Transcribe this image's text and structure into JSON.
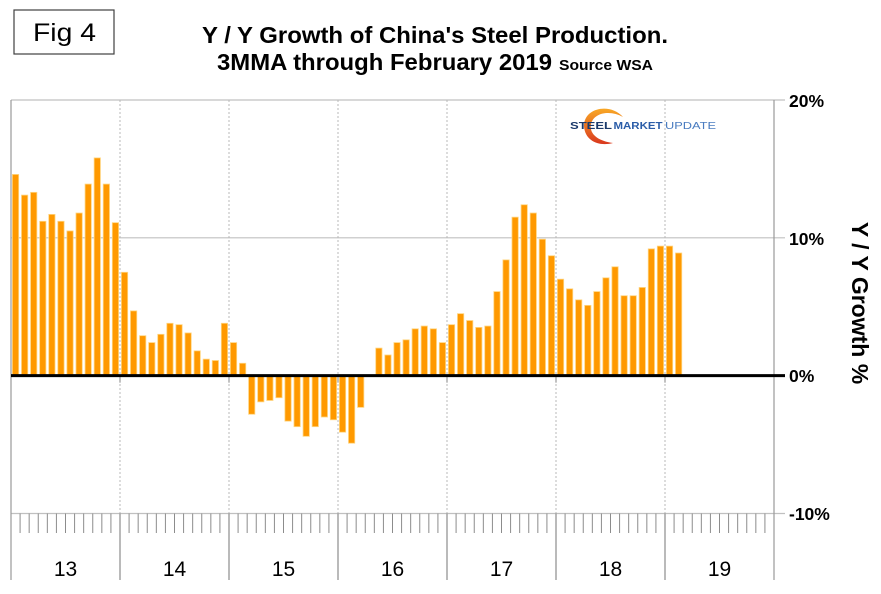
{
  "figure_label": "Fig 4",
  "title": {
    "line1": "Y / Y Growth of China's Steel Production.",
    "line2_main": "3MMA through February 2019",
    "line2_source": "Source WSA"
  },
  "logo": {
    "word1": "STEEL",
    "word2": "MARKET",
    "word3": "UPDATE",
    "colors": {
      "word1": "#1B3A6B",
      "word2": "#2B5DA8",
      "word3": "#4A7CC0",
      "swoosh_top": "#F9A825",
      "swoosh_bottom": "#D9381E"
    }
  },
  "chart_data": {
    "type": "bar",
    "title": "Y / Y Growth of China's Steel Production. 3MMA through February 2019",
    "subtitle": "Source WSA",
    "xlabel": "",
    "ylabel": "Y / Y Growth %",
    "ylim": [
      -10,
      20
    ],
    "yticks": [
      20,
      10,
      0,
      -10
    ],
    "ytick_labels": [
      "20%",
      "10%",
      "0%",
      "-10%"
    ],
    "x_tick_labels": [
      "13",
      "14",
      "15",
      "16",
      "17",
      "18",
      "19"
    ],
    "bars_per_label": 12,
    "grid": "horizontal at y ticks, dotted vertical at year boundaries",
    "legend": "none",
    "groups": [
      {
        "label": "13",
        "values": [
          14.6,
          13.1,
          13.3,
          11.2,
          11.7,
          11.2,
          10.5,
          11.8,
          13.9,
          15.8,
          13.9,
          11.1
        ]
      },
      {
        "label": "14",
        "values": [
          7.5,
          4.7,
          2.9,
          2.4,
          3.0,
          3.8,
          3.7,
          3.1,
          1.8,
          1.2,
          1.1,
          3.8
        ]
      },
      {
        "label": "15",
        "values": [
          2.4,
          0.9,
          -2.8,
          -1.9,
          -1.8,
          -1.6,
          -3.3,
          -3.7,
          -4.4,
          -3.7,
          -3.0,
          -3.2
        ]
      },
      {
        "label": "16",
        "values": [
          -4.1,
          -4.9,
          -2.3,
          0.0,
          2.0,
          1.5,
          2.4,
          2.6,
          3.4,
          3.6,
          3.4,
          2.4
        ]
      },
      {
        "label": "17",
        "values": [
          3.7,
          4.5,
          4.0,
          3.5,
          3.6,
          6.1,
          8.4,
          11.5,
          12.4,
          11.8,
          9.9,
          8.7
        ]
      },
      {
        "label": "18",
        "values": [
          7.0,
          6.3,
          5.5,
          5.1,
          6.1,
          7.1,
          7.9,
          5.8,
          5.8,
          6.4,
          9.2,
          9.4
        ]
      },
      {
        "label": "19",
        "values": [
          9.4,
          8.9
        ]
      }
    ],
    "colors": {
      "bar": "#FF9900",
      "bar_edge": "#FFD580",
      "zero_line": "#000000",
      "grid": "#C0C0C0",
      "axis": "#9A9A9A"
    }
  }
}
